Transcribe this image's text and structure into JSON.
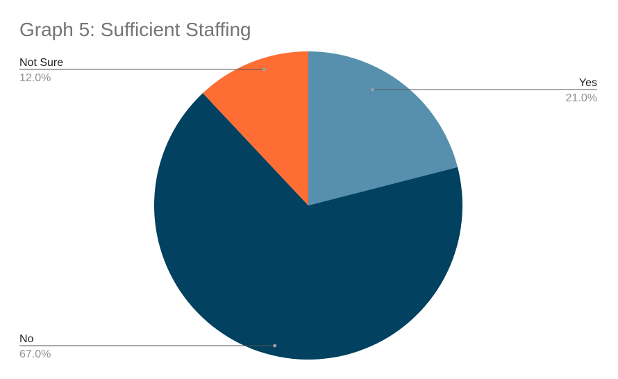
{
  "chart_data": {
    "type": "pie",
    "title": "Graph 5: Sufficient Staffing",
    "slices": [
      {
        "label": "Yes",
        "value": 21.0,
        "percent_label": "21.0%",
        "color": "#5790ae"
      },
      {
        "label": "No",
        "value": 67.0,
        "percent_label": "67.0%",
        "color": "#02415f"
      },
      {
        "label": "Not Sure",
        "value": 12.0,
        "percent_label": "12.0%",
        "color": "#fe6d33"
      }
    ],
    "start_angle": "12 o'clock",
    "direction": "clockwise",
    "legend": "none"
  }
}
